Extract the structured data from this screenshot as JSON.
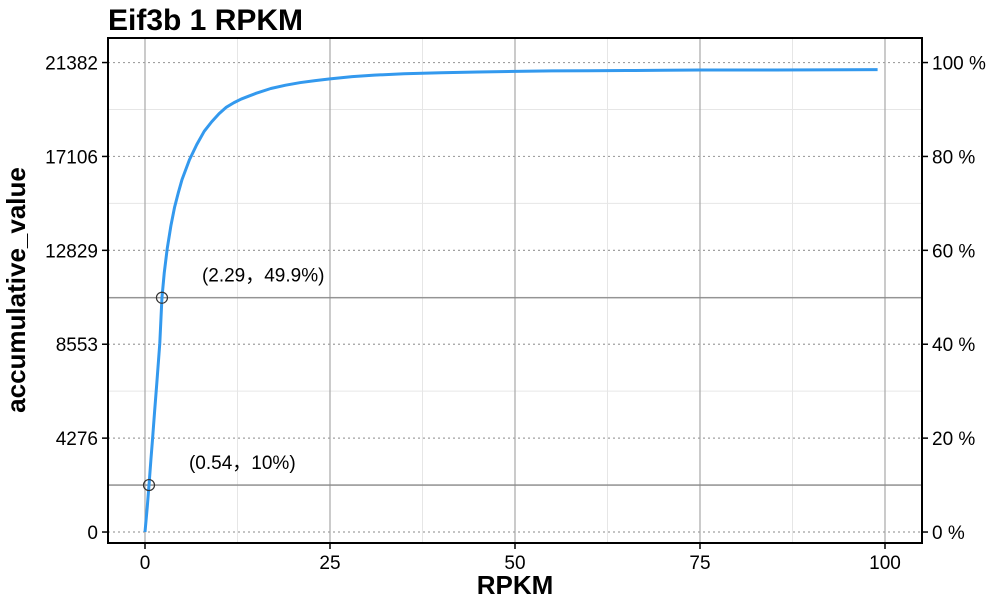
{
  "chart_data": {
    "type": "line",
    "title": "Eif3b 1 RPKM",
    "xlabel": "RPKM",
    "ylabel": "accumulative_value",
    "xlim": [
      -5,
      105
    ],
    "ylim": [
      -500,
      22500
    ],
    "x_ticks": [
      "0",
      "25",
      "50",
      "75",
      "100"
    ],
    "x_tick_values": [
      0,
      25,
      50,
      75,
      100
    ],
    "y_ticks": [
      "0",
      "4276",
      "8553",
      "12829",
      "17106",
      "21382"
    ],
    "y_tick_values": [
      0,
      4276,
      8553,
      12829,
      17106,
      21382
    ],
    "y2_ticks": [
      "0 %",
      "20 %",
      "40 %",
      "60 %",
      "80 %",
      "100 %"
    ],
    "y2_tick_values": [
      0,
      20,
      40,
      60,
      80,
      100
    ],
    "grid": true,
    "line_color": "#3399ee",
    "series": [
      {
        "x": [
          0,
          0.3,
          0.54,
          0.8,
          1,
          1.3,
          1.6,
          2,
          2.29,
          2.6,
          3,
          3.5,
          4,
          4.5,
          5,
          6,
          7,
          8,
          9,
          10,
          11,
          12,
          13,
          14,
          15,
          17,
          19,
          21,
          23,
          25,
          28,
          31,
          35,
          40,
          45,
          50,
          55,
          60,
          65,
          70,
          75,
          80,
          85,
          90,
          95,
          99
        ],
        "y": [
          0,
          1120,
          2138,
          3300,
          4150,
          5500,
          6800,
          8600,
          10670,
          11800,
          12900,
          13950,
          14800,
          15450,
          16050,
          16950,
          17650,
          18250,
          18680,
          19050,
          19350,
          19550,
          19720,
          19850,
          19980,
          20200,
          20350,
          20470,
          20560,
          20640,
          20740,
          20810,
          20870,
          20920,
          20950,
          20980,
          21000,
          21010,
          21020,
          21030,
          21040,
          21040,
          21045,
          21050,
          21055,
          21060
        ]
      }
    ],
    "annotations": [
      {
        "x": 0.54,
        "y": 2138,
        "label": "(0.54，10%)"
      },
      {
        "x": 2.29,
        "y": 10670,
        "label": "(2.29，49.9%)"
      }
    ]
  }
}
